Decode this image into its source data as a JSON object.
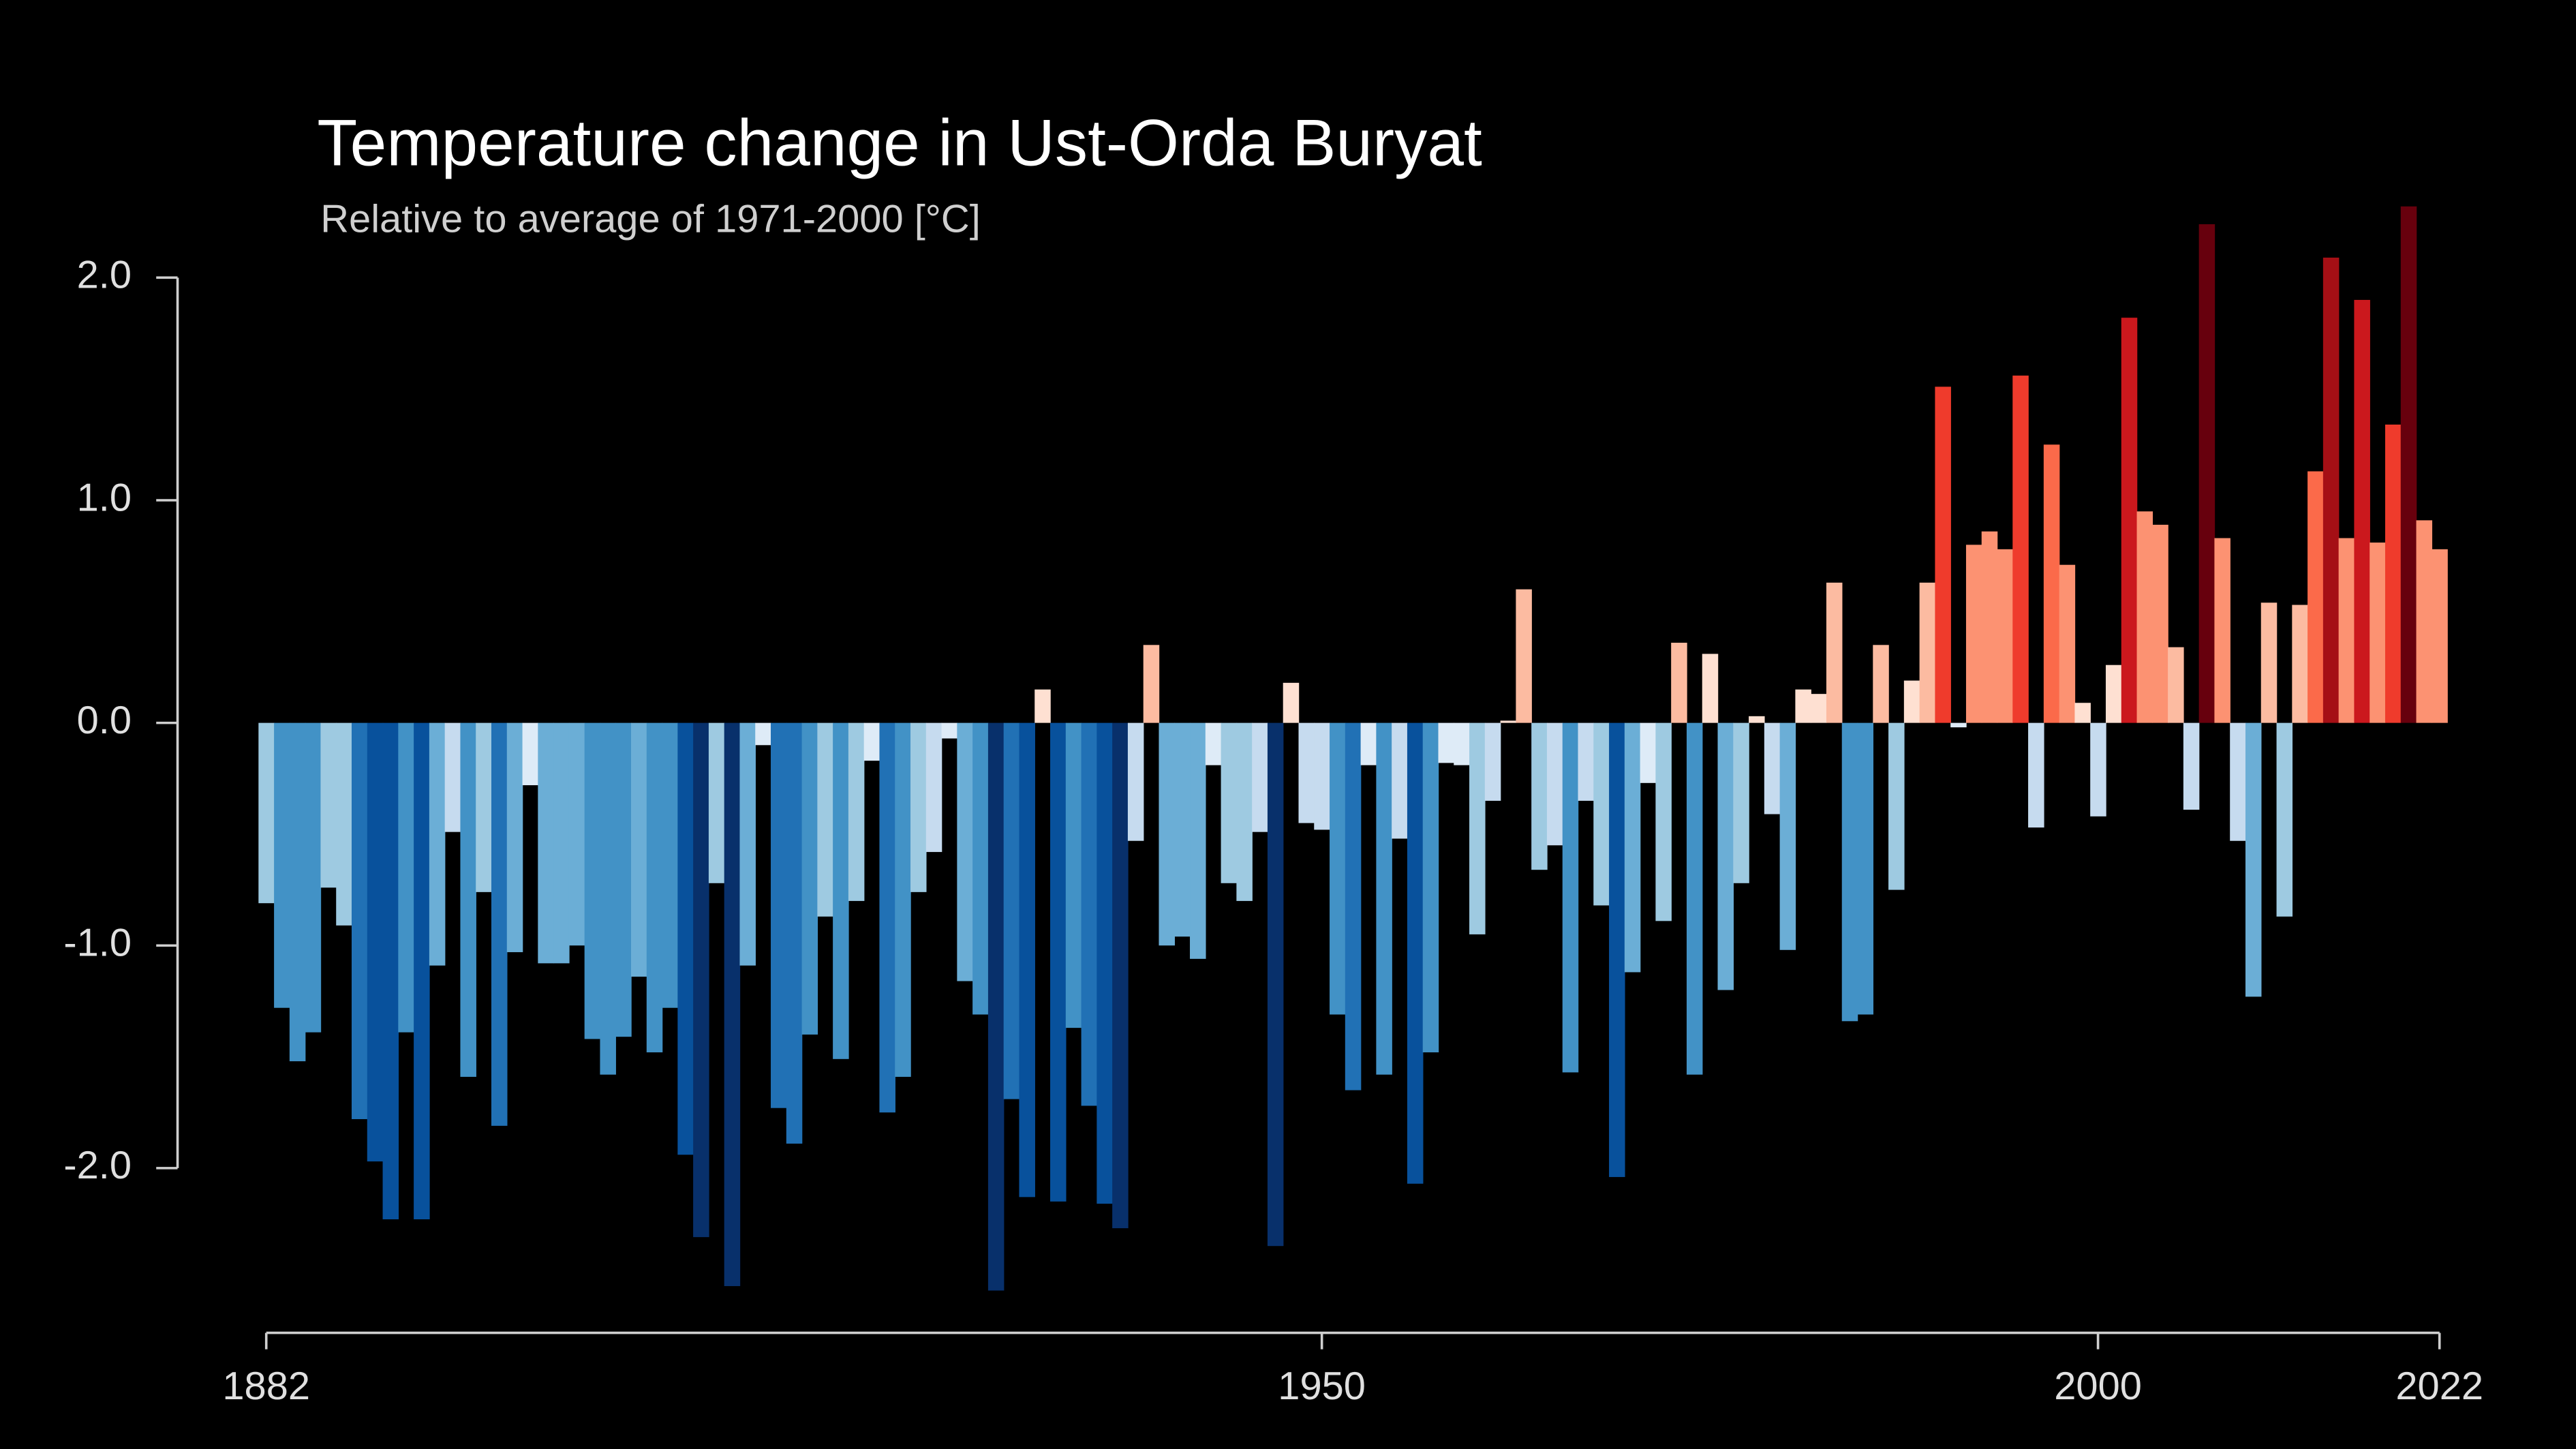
{
  "chart_data": {
    "type": "bar",
    "title": "Temperature change in Ust-Orda Buryat",
    "subtitle": "Relative to average of 1971-2000  [°C]",
    "x": [
      1882,
      1883,
      1884,
      1885,
      1886,
      1887,
      1888,
      1889,
      1890,
      1891,
      1892,
      1893,
      1894,
      1895,
      1896,
      1897,
      1898,
      1899,
      1900,
      1901,
      1902,
      1903,
      1904,
      1905,
      1906,
      1907,
      1908,
      1909,
      1910,
      1911,
      1912,
      1913,
      1914,
      1915,
      1916,
      1917,
      1918,
      1919,
      1920,
      1921,
      1922,
      1923,
      1924,
      1925,
      1926,
      1927,
      1928,
      1929,
      1930,
      1931,
      1932,
      1933,
      1934,
      1935,
      1936,
      1937,
      1938,
      1939,
      1940,
      1941,
      1942,
      1943,
      1944,
      1945,
      1946,
      1947,
      1948,
      1949,
      1950,
      1951,
      1952,
      1953,
      1954,
      1955,
      1956,
      1957,
      1958,
      1959,
      1960,
      1961,
      1962,
      1963,
      1964,
      1965,
      1966,
      1967,
      1968,
      1969,
      1970,
      1971,
      1972,
      1973,
      1974,
      1975,
      1976,
      1977,
      1978,
      1979,
      1980,
      1981,
      1982,
      1983,
      1984,
      1985,
      1986,
      1987,
      1988,
      1989,
      1990,
      1991,
      1992,
      1993,
      1994,
      1995,
      1996,
      1997,
      1998,
      1999,
      2000,
      2001,
      2002,
      2003,
      2004,
      2005,
      2006,
      2007,
      2008,
      2009,
      2010,
      2011,
      2012,
      2013,
      2014,
      2015,
      2016,
      2017,
      2018,
      2019,
      2020,
      2021,
      2022
    ],
    "values": [
      -0.81,
      -1.28,
      -1.52,
      -1.39,
      -0.74,
      -0.91,
      -1.78,
      -1.97,
      -2.23,
      -1.39,
      -2.23,
      -1.09,
      -0.49,
      -1.59,
      -0.76,
      -1.81,
      -1.03,
      -0.28,
      -1.08,
      -1.08,
      -1.0,
      -1.42,
      -1.58,
      -1.41,
      -1.14,
      -1.48,
      -1.28,
      -1.94,
      -2.31,
      -0.72,
      -2.53,
      -1.09,
      -0.1,
      -1.73,
      -1.89,
      -1.4,
      -0.87,
      -1.51,
      -0.8,
      -0.17,
      -1.75,
      -1.59,
      -0.76,
      -0.58,
      -0.07,
      -1.16,
      -1.31,
      -2.55,
      -1.69,
      -2.13,
      0.15,
      -2.15,
      -1.37,
      -1.72,
      -2.16,
      -2.27,
      -0.53,
      0.35,
      -1.0,
      -0.96,
      -1.06,
      -0.19,
      -0.72,
      -0.8,
      -0.49,
      -2.35,
      0.18,
      -0.45,
      -0.48,
      -1.31,
      -1.65,
      -0.19,
      -1.58,
      -0.52,
      -2.07,
      -1.48,
      -0.18,
      -0.19,
      -0.95,
      -0.35,
      0.01,
      0.6,
      -0.66,
      -0.55,
      -1.57,
      -0.35,
      -0.82,
      -2.04,
      -1.12,
      -0.27,
      -0.89,
      0.36,
      -1.58,
      0.31,
      -1.2,
      -0.72,
      0.03,
      -0.41,
      -1.02,
      0.15,
      0.13,
      0.63,
      -1.34,
      -1.31,
      0.35,
      -0.75,
      0.19,
      0.63,
      1.51,
      -0.02,
      0.8,
      0.86,
      0.78,
      1.56,
      -0.47,
      1.25,
      0.71,
      0.09,
      -0.42,
      0.26,
      1.82,
      0.95,
      0.89,
      0.34,
      -0.39,
      2.24,
      0.83,
      -0.53,
      -1.23,
      0.54,
      -0.87,
      0.53,
      1.13,
      2.09,
      0.83,
      1.9,
      0.81,
      1.34,
      2.32,
      0.91,
      0.78
    ],
    "colors": {
      "negative": [
        "#deebf7",
        "#c6dbef",
        "#9ecae1",
        "#6baed6",
        "#4292c6",
        "#2171b5",
        "#08519c",
        "#08306b"
      ],
      "positive": [
        "#fee0d2",
        "#fcbba1",
        "#fc9272",
        "#fb6a4a",
        "#ef3b2c",
        "#cb181d",
        "#a50f15",
        "#67000d"
      ]
    },
    "xlim": [
      1882,
      2022
    ],
    "xticks": [
      1882,
      1950,
      2000,
      2022
    ],
    "ylim": [
      -2.74,
      2.4
    ],
    "yticks": [
      {
        "value": -2,
        "label": "-2.0"
      },
      {
        "value": -1,
        "label": "-1.0"
      },
      {
        "value": 0,
        "label": "0.0"
      },
      {
        "value": 1,
        "label": "1.0"
      },
      {
        "value": 2,
        "label": "2.0"
      }
    ],
    "grid": false
  }
}
